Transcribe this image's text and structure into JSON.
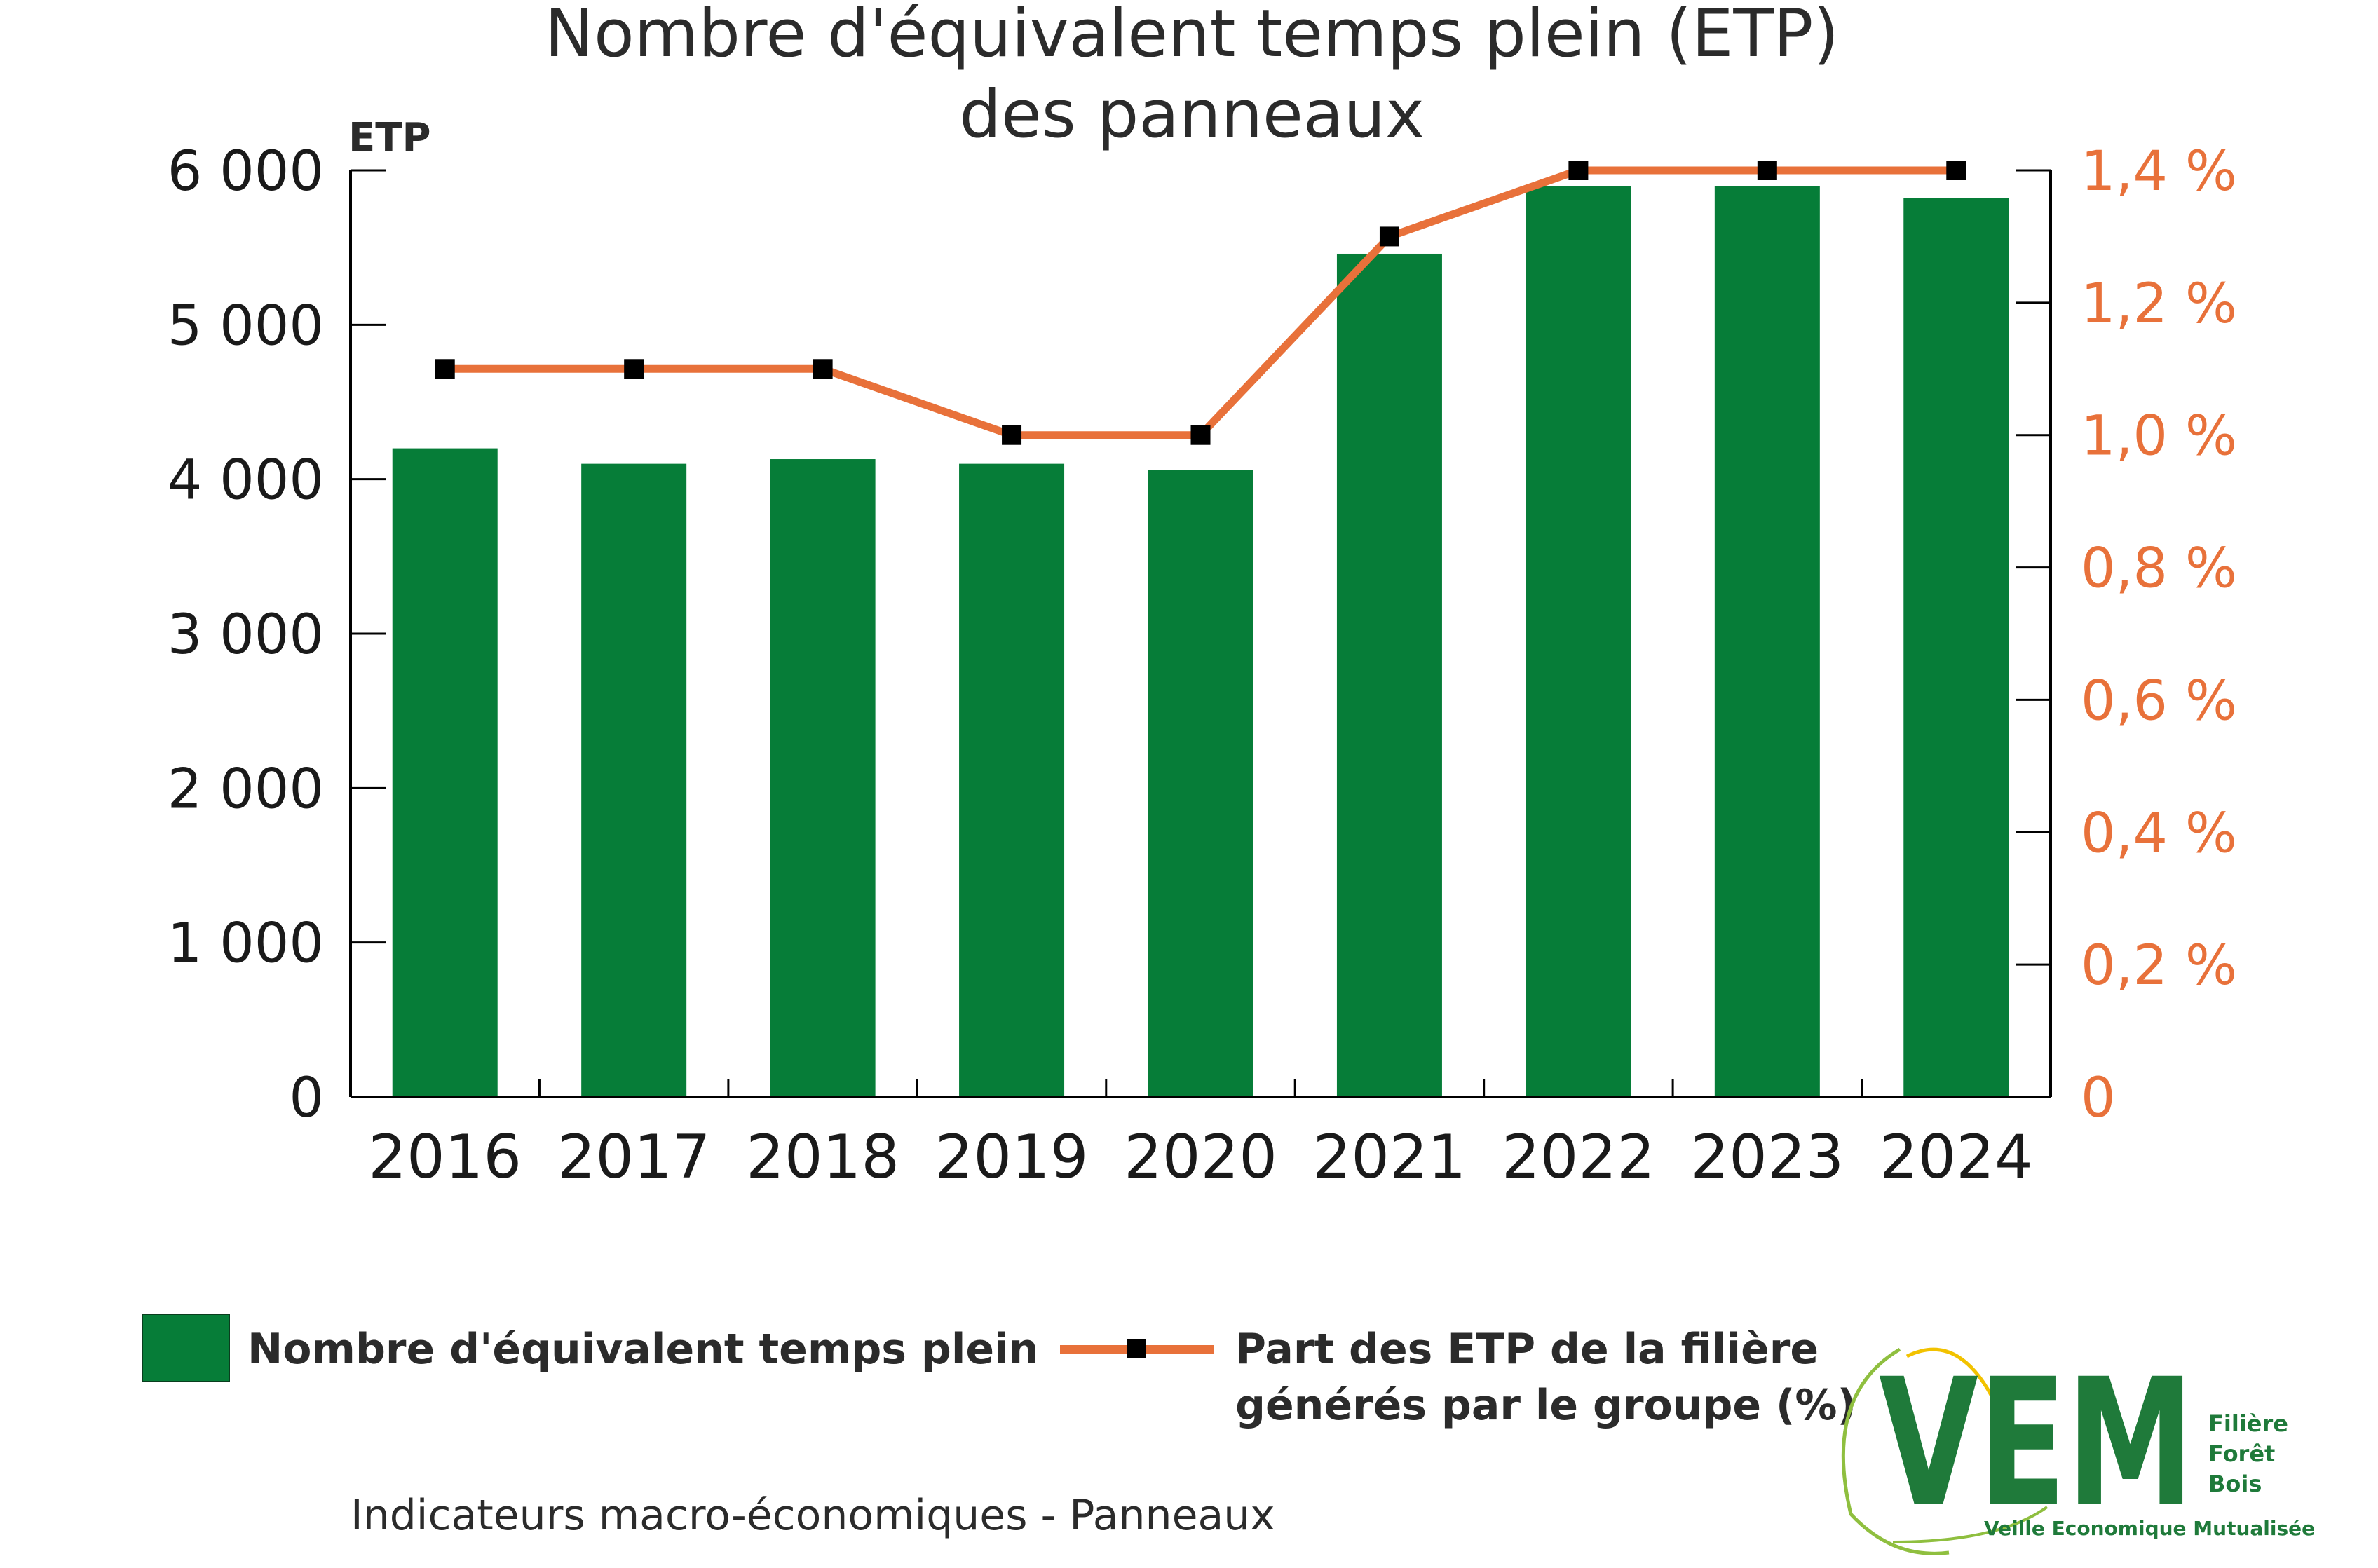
{
  "chart_data": {
    "type": "bar",
    "title": [
      "Nombre d'équivalent temps plein (ETP)",
      "des panneaux"
    ],
    "y_unit": "ETP",
    "categories": [
      "2016",
      "2017",
      "2018",
      "2019",
      "2020",
      "2021",
      "2022",
      "2023",
      "2024"
    ],
    "series": [
      {
        "name": "Nombre d'équivalent temps plein",
        "type": "bar",
        "axis": "left",
        "color": "#067d38",
        "values": [
          4200,
          4100,
          4130,
          4100,
          4060,
          5460,
          5900,
          5900,
          5820
        ]
      },
      {
        "name": "Part des ETP de la filière générés par le groupe (%)",
        "type": "line",
        "axis": "right",
        "color": "#e8713a",
        "marker_color": "#000000",
        "values": [
          1.1,
          1.1,
          1.1,
          1.0,
          1.0,
          1.3,
          1.4,
          1.4,
          1.4
        ]
      }
    ],
    "y_left": {
      "min": 0,
      "max": 6000,
      "ticks": [
        0,
        1000,
        2000,
        3000,
        4000,
        5000,
        6000
      ],
      "tick_labels": [
        "0",
        "1 000",
        "2 000",
        "3 000",
        "4 000",
        "5 000",
        "6 000"
      ]
    },
    "y_right": {
      "min": 0,
      "max": 1.4,
      "ticks": [
        0,
        0.2,
        0.4,
        0.6,
        0.8,
        1.0,
        1.2,
        1.4
      ],
      "tick_labels": [
        "0",
        "0,2 %",
        "0,4 %",
        "0,6 %",
        "0,8 %",
        "1,0 %",
        "1,2 %",
        "1,4 %"
      ],
      "color": "#e8713a"
    },
    "grid": false,
    "legend_position": "bottom"
  },
  "legend": {
    "bar_label": "Nombre d'équivalent temps plein",
    "line_label_1": "Part des ETP de la filière",
    "line_label_2": "générés par le groupe (%)"
  },
  "footer": "Indicateurs macro-économiques - Panneaux",
  "logo": {
    "mark": "VEM",
    "line1": "Filière",
    "line2": "Forêt",
    "line3": "Bois",
    "tagline": "Veille Economique Mutualisée"
  }
}
